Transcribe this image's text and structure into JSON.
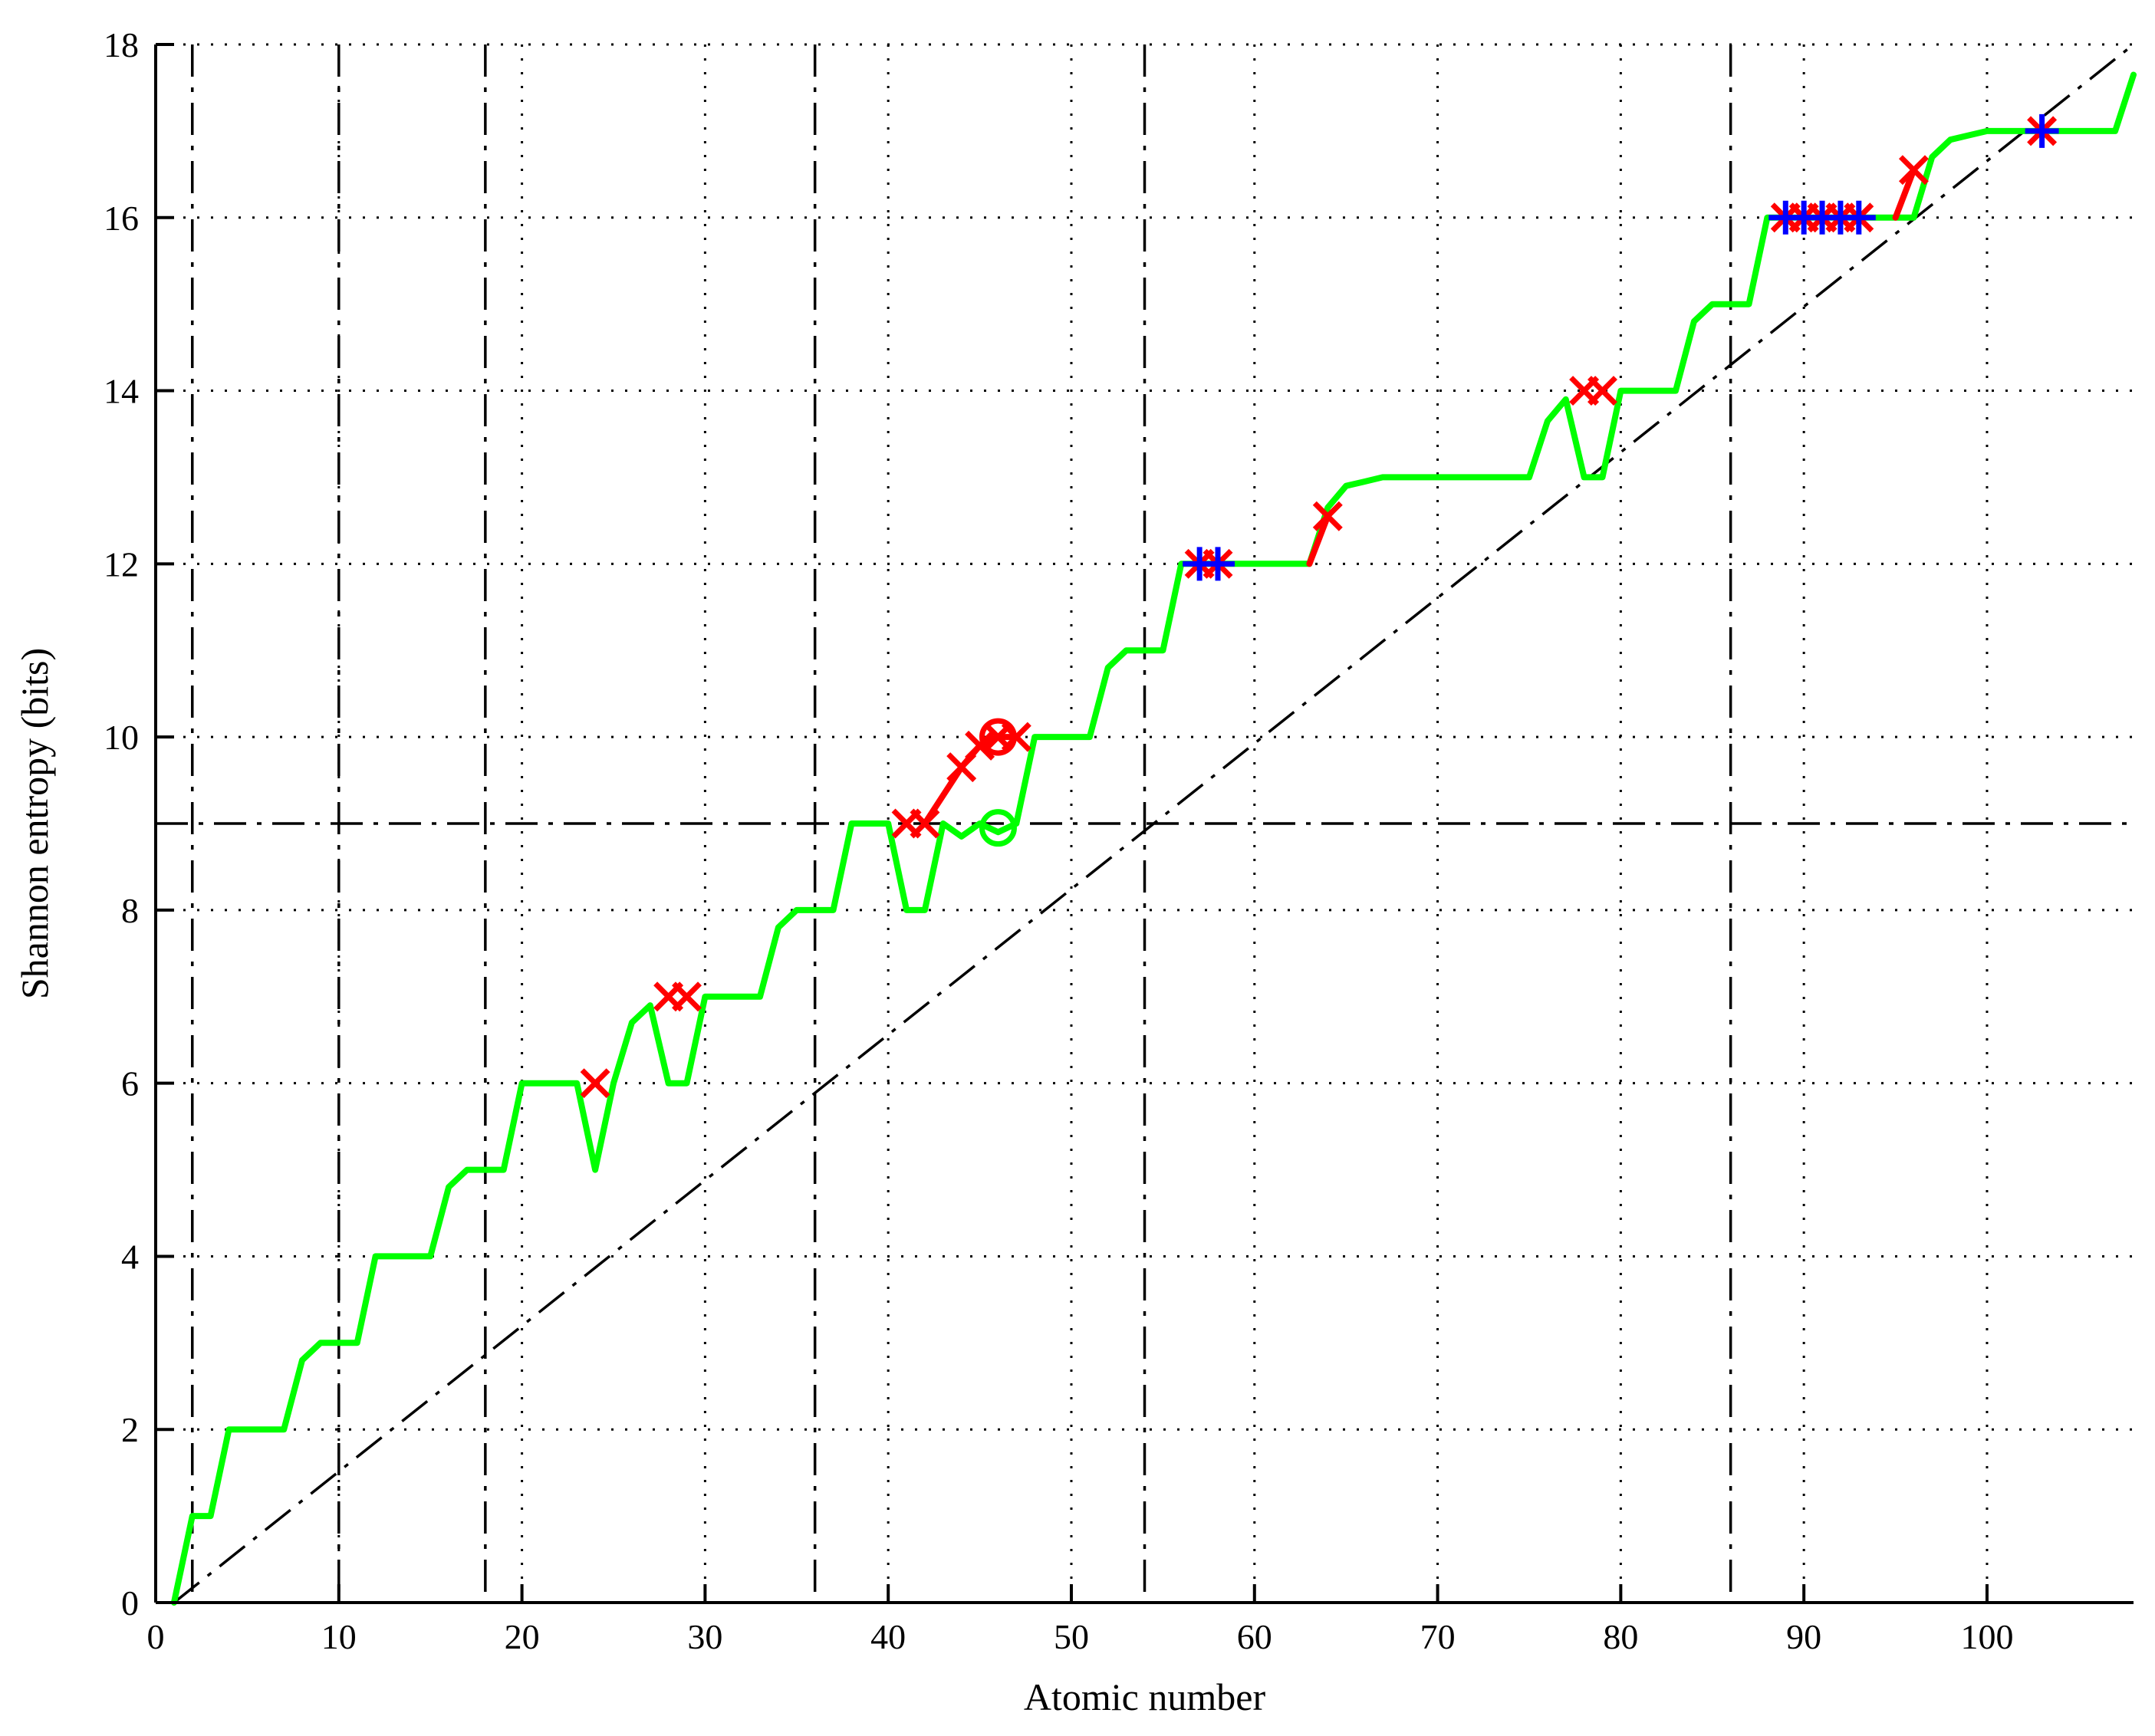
{
  "chart_data": {
    "type": "line",
    "title": "",
    "xlabel": "Atomic number",
    "ylabel": "Shannon entropy (bits)",
    "xlim": [
      0,
      108
    ],
    "ylim": [
      0,
      18
    ],
    "x_ticks": [
      0,
      10,
      20,
      30,
      40,
      50,
      60,
      70,
      80,
      90,
      100
    ],
    "y_ticks": [
      0,
      2,
      4,
      6,
      8,
      10,
      12,
      14,
      16,
      18
    ],
    "grid": true,
    "colors": {
      "green": "#00ff00",
      "red": "#ff0000",
      "blue": "#0000ff",
      "black": "#000000",
      "grid": "#000000"
    },
    "vertical_reference_lines": [
      2,
      10,
      18,
      36,
      54,
      86
    ],
    "horizontal_reference_line": 9,
    "diagonal_reference": {
      "from": [
        1,
        0
      ],
      "to": [
        108,
        18
      ]
    },
    "series": [
      {
        "color": "#00ff00",
        "points": [
          [
            1,
            0
          ],
          [
            2,
            1
          ],
          [
            3,
            1
          ],
          [
            4,
            2
          ],
          [
            5,
            2
          ],
          [
            6,
            2
          ],
          [
            7,
            2
          ],
          [
            8,
            2.8
          ],
          [
            9,
            3
          ],
          [
            10,
            3
          ],
          [
            11,
            3
          ],
          [
            12,
            4
          ],
          [
            13,
            4
          ],
          [
            14,
            4
          ],
          [
            15,
            4
          ],
          [
            16,
            4.8
          ],
          [
            17,
            5
          ],
          [
            18,
            5
          ],
          [
            19,
            5
          ],
          [
            20,
            6
          ],
          [
            21,
            6
          ],
          [
            22,
            6
          ],
          [
            23,
            6
          ],
          [
            24,
            5
          ],
          [
            25,
            6
          ],
          [
            26,
            6.7
          ],
          [
            27,
            6.9
          ],
          [
            28,
            6
          ],
          [
            29,
            6
          ],
          [
            30,
            7
          ],
          [
            31,
            7
          ],
          [
            32,
            7
          ],
          [
            33,
            7
          ],
          [
            34,
            7.8
          ],
          [
            35,
            8
          ],
          [
            36,
            8
          ],
          [
            37,
            8
          ],
          [
            38,
            9
          ],
          [
            39,
            9
          ],
          [
            40,
            9
          ],
          [
            41,
            8
          ],
          [
            42,
            8
          ],
          [
            43,
            9
          ],
          [
            44,
            8.85
          ],
          [
            45,
            9
          ],
          [
            46,
            8.9
          ],
          [
            47,
            9
          ],
          [
            48,
            10
          ],
          [
            49,
            10
          ],
          [
            50,
            10
          ],
          [
            51,
            10
          ],
          [
            52,
            10.8
          ],
          [
            53,
            11
          ],
          [
            54,
            11
          ],
          [
            55,
            11
          ],
          [
            56,
            12
          ],
          [
            57,
            12
          ],
          [
            58,
            12
          ],
          [
            59,
            12
          ],
          [
            60,
            12
          ],
          [
            61,
            12
          ],
          [
            62,
            12
          ],
          [
            63,
            12
          ],
          [
            64,
            12.65
          ],
          [
            65,
            12.9
          ],
          [
            66,
            12.95
          ],
          [
            67,
            13
          ],
          [
            68,
            13
          ],
          [
            69,
            13
          ],
          [
            70,
            13
          ],
          [
            71,
            13
          ],
          [
            72,
            13
          ],
          [
            73,
            13
          ],
          [
            74,
            13
          ],
          [
            75,
            13
          ],
          [
            76,
            13.65
          ],
          [
            77,
            13.9
          ],
          [
            78,
            13
          ],
          [
            79,
            13
          ],
          [
            80,
            14
          ],
          [
            81,
            14
          ],
          [
            82,
            14
          ],
          [
            83,
            14
          ],
          [
            84,
            14.8
          ],
          [
            85,
            15
          ],
          [
            86,
            15
          ],
          [
            87,
            15
          ],
          [
            88,
            16
          ],
          [
            89,
            16
          ],
          [
            90,
            16
          ],
          [
            91,
            16
          ],
          [
            92,
            16
          ],
          [
            93,
            16
          ],
          [
            94,
            16
          ],
          [
            95,
            16
          ],
          [
            96,
            16
          ],
          [
            97,
            16.7
          ],
          [
            98,
            16.9
          ],
          [
            99,
            16.95
          ],
          [
            100,
            17
          ],
          [
            101,
            17
          ],
          [
            102,
            17
          ],
          [
            103,
            17
          ],
          [
            104,
            17
          ],
          [
            105,
            17
          ],
          [
            106,
            17
          ],
          [
            107,
            17
          ],
          [
            108,
            17.65
          ]
        ]
      },
      {
        "color": "#ff0000",
        "segments": [
          [
            [
              42,
              9
            ],
            [
              44,
              9.65
            ],
            [
              45,
              9.9
            ],
            [
              46,
              10
            ],
            [
              47,
              10
            ]
          ],
          [
            [
              63,
              12
            ],
            [
              64,
              12.55
            ]
          ],
          [
            [
              95,
              16
            ],
            [
              96,
              16.55
            ]
          ]
        ]
      }
    ],
    "markers": [
      {
        "shape": "x",
        "color": "#ff0000",
        "x": 24,
        "y": 6
      },
      {
        "shape": "x",
        "color": "#ff0000",
        "x": 28,
        "y": 7
      },
      {
        "shape": "x",
        "color": "#ff0000",
        "x": 29,
        "y": 7
      },
      {
        "shape": "x",
        "color": "#ff0000",
        "x": 41,
        "y": 9
      },
      {
        "shape": "x",
        "color": "#ff0000",
        "x": 42,
        "y": 9
      },
      {
        "shape": "x",
        "color": "#ff0000",
        "x": 44,
        "y": 9.65
      },
      {
        "shape": "x",
        "color": "#ff0000",
        "x": 45,
        "y": 9.9
      },
      {
        "shape": "x",
        "color": "#ff0000",
        "x": 46,
        "y": 10
      },
      {
        "shape": "x",
        "color": "#ff0000",
        "x": 47,
        "y": 10
      },
      {
        "shape": "o",
        "color": "#ff0000",
        "x": 46,
        "y": 10
      },
      {
        "shape": "o",
        "color": "#00ff00",
        "x": 46,
        "y": 8.95
      },
      {
        "shape": "x",
        "color": "#ff0000",
        "x": 57,
        "y": 12
      },
      {
        "shape": "x",
        "color": "#ff0000",
        "x": 58,
        "y": 12
      },
      {
        "shape": "+",
        "color": "#0000ff",
        "x": 57,
        "y": 12
      },
      {
        "shape": "+",
        "color": "#0000ff",
        "x": 58,
        "y": 12
      },
      {
        "shape": "x",
        "color": "#ff0000",
        "x": 64,
        "y": 12.55
      },
      {
        "shape": "x",
        "color": "#ff0000",
        "x": 78,
        "y": 14
      },
      {
        "shape": "x",
        "color": "#ff0000",
        "x": 79,
        "y": 14
      },
      {
        "shape": "x",
        "color": "#ff0000",
        "x": 89,
        "y": 16
      },
      {
        "shape": "x",
        "color": "#ff0000",
        "x": 90,
        "y": 16
      },
      {
        "shape": "x",
        "color": "#ff0000",
        "x": 91,
        "y": 16
      },
      {
        "shape": "x",
        "color": "#ff0000",
        "x": 92,
        "y": 16
      },
      {
        "shape": "x",
        "color": "#ff0000",
        "x": 93,
        "y": 16
      },
      {
        "shape": "+",
        "color": "#0000ff",
        "x": 89,
        "y": 16
      },
      {
        "shape": "+",
        "color": "#0000ff",
        "x": 90,
        "y": 16
      },
      {
        "shape": "+",
        "color": "#0000ff",
        "x": 91,
        "y": 16
      },
      {
        "shape": "+",
        "color": "#0000ff",
        "x": 92,
        "y": 16
      },
      {
        "shape": "+",
        "color": "#0000ff",
        "x": 93,
        "y": 16
      },
      {
        "shape": "x",
        "color": "#ff0000",
        "x": 96,
        "y": 16.55
      },
      {
        "shape": "x",
        "color": "#ff0000",
        "x": 103,
        "y": 17
      },
      {
        "shape": "+",
        "color": "#0000ff",
        "x": 103,
        "y": 17
      }
    ]
  }
}
